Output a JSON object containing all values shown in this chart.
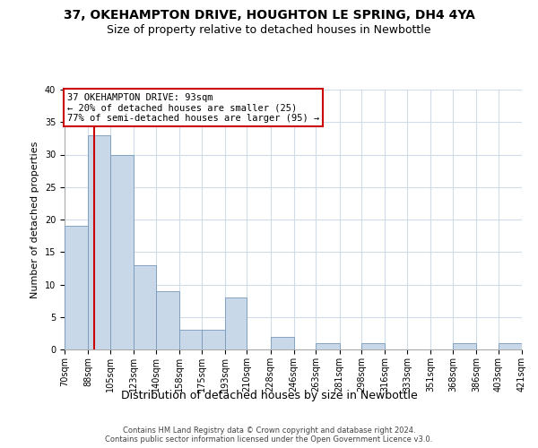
{
  "title": "37, OKEHAMPTON DRIVE, HOUGHTON LE SPRING, DH4 4YA",
  "subtitle": "Size of property relative to detached houses in Newbottle",
  "xlabel": "Distribution of detached houses by size in Newbottle",
  "ylabel": "Number of detached properties",
  "bin_edges": [
    70,
    88,
    105,
    123,
    140,
    158,
    175,
    193,
    210,
    228,
    246,
    263,
    281,
    298,
    316,
    333,
    351,
    368,
    386,
    403,
    421
  ],
  "counts": [
    19,
    33,
    30,
    13,
    9,
    3,
    3,
    8,
    0,
    2,
    0,
    1,
    0,
    1,
    0,
    0,
    0,
    1,
    0,
    1
  ],
  "bar_color": "#c8d8e8",
  "bar_edge_color": "#7799bb",
  "property_line_x": 93,
  "property_line_color": "#cc0000",
  "annotation_text": "37 OKEHAMPTON DRIVE: 93sqm\n← 20% of detached houses are smaller (25)\n77% of semi-detached houses are larger (95) →",
  "annotation_box_edge_color": "#cc0000",
  "ylim": [
    0,
    40
  ],
  "yticks": [
    0,
    5,
    10,
    15,
    20,
    25,
    30,
    35,
    40
  ],
  "background_color": "#ffffff",
  "grid_color": "#d0dcea",
  "footer_line1": "Contains HM Land Registry data © Crown copyright and database right 2024.",
  "footer_line2": "Contains public sector information licensed under the Open Government Licence v3.0.",
  "title_fontsize": 10,
  "subtitle_fontsize": 9,
  "xlabel_fontsize": 9,
  "ylabel_fontsize": 8,
  "tick_label_fontsize": 7,
  "annotation_fontsize": 7.5,
  "footer_fontsize": 6
}
